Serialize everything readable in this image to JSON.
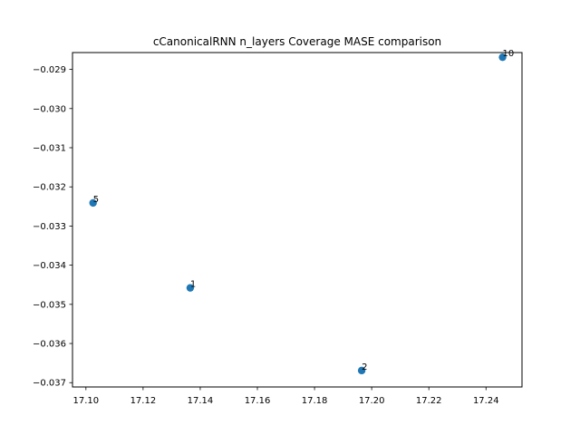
{
  "chart_data": {
    "type": "scatter",
    "title": "cCanonicalRNN n_layers Coverage MASE comparison",
    "xlabel": "",
    "ylabel": "",
    "xlim": [
      17.0953,
      17.2526
    ],
    "ylim": [
      -0.03711,
      -0.02857
    ],
    "xticks": [
      17.1,
      17.12,
      17.14,
      17.16,
      17.18,
      17.2,
      17.22,
      17.24
    ],
    "xtick_labels": [
      "17.10",
      "17.12",
      "17.14",
      "17.16",
      "17.18",
      "17.20",
      "17.22",
      "17.24"
    ],
    "yticks": [
      -0.037,
      -0.036,
      -0.035,
      -0.034,
      -0.033,
      -0.032,
      -0.031,
      -0.03,
      -0.029
    ],
    "ytick_labels": [
      "−0.037",
      "−0.036",
      "−0.035",
      "−0.034",
      "−0.033",
      "−0.032",
      "−0.031",
      "−0.030",
      "−0.029"
    ],
    "grid": false,
    "marker_color": "#1f77b4",
    "points": [
      {
        "x": 17.1025,
        "y": -0.03241,
        "label": "5"
      },
      {
        "x": 17.1365,
        "y": -0.03458,
        "label": "1"
      },
      {
        "x": 17.1965,
        "y": -0.03669,
        "label": "2"
      },
      {
        "x": 17.2458,
        "y": -0.02869,
        "label": "10"
      }
    ]
  }
}
